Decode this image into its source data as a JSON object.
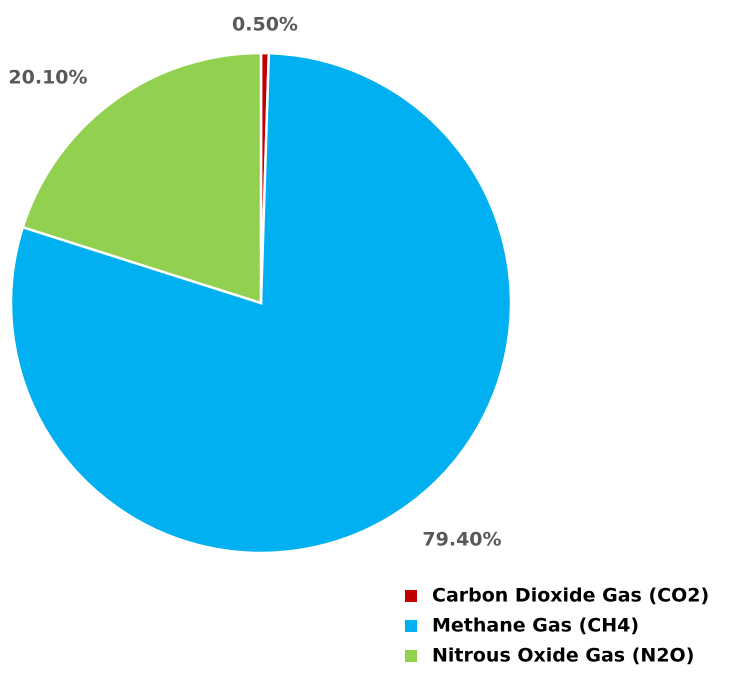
{
  "chart_data": {
    "type": "pie",
    "categories": [
      "Carbon Dioxide Gas (CO2)",
      "Methane Gas (CH4)",
      "Nitrous Oxide Gas (N2O)"
    ],
    "values": [
      0.5,
      79.4,
      20.1
    ],
    "value_labels": [
      "0.50%",
      "79.40%",
      "20.10%"
    ],
    "colors": [
      "#c00000",
      "#00b0f0",
      "#92d050"
    ],
    "legend": "bottom-right"
  }
}
